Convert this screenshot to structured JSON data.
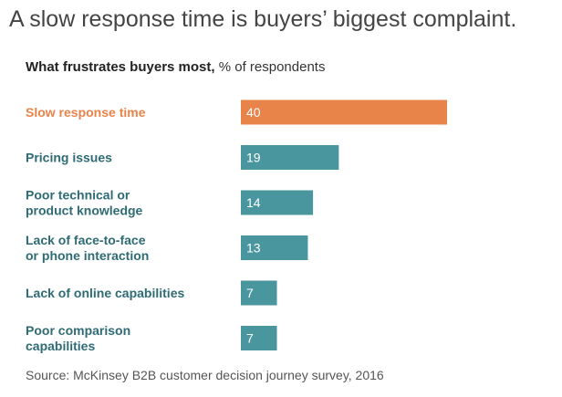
{
  "title": "A slow response time is buyers’ biggest complaint.",
  "subtitle": {
    "main": "What frustrates buyers most,",
    "unit": "% of respondents"
  },
  "source": "Source: McKinsey B2B customer decision journey survey, 2016",
  "colors": {
    "highlight": "#E8834A",
    "bar": "#4A969E",
    "highlight_label": "#E8834A",
    "label": "#2E6B74",
    "value_text": "#FFFFFF"
  },
  "chart_data": {
    "type": "bar",
    "orientation": "horizontal",
    "categories": [
      [
        "Slow response time"
      ],
      [
        "Pricing issues"
      ],
      [
        "Poor technical or",
        "product knowledge"
      ],
      [
        "Lack of face-to-face",
        "or phone interaction"
      ],
      [
        "Lack of online capabilities"
      ],
      [
        "Poor comparison",
        "capabilities"
      ]
    ],
    "values": [
      40,
      19,
      14,
      13,
      7,
      7
    ],
    "highlight_index": 0,
    "xlim": [
      0,
      40
    ],
    "grid": false,
    "legend": "none"
  }
}
